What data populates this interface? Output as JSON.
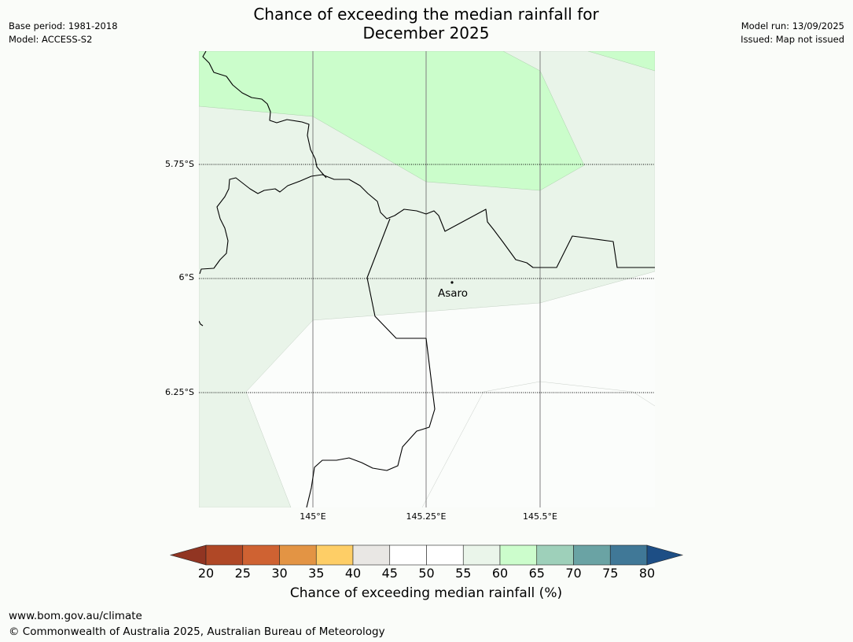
{
  "title": {
    "line1": "Chance of exceeding the median rainfall for",
    "line2": "December 2025"
  },
  "meta_left": {
    "base_period": "Base period: 1981-2018",
    "model": "Model: ACCESS-S2"
  },
  "meta_right": {
    "model_run": "Model run: 13/09/2025",
    "issued": "Issued: Map not issued"
  },
  "map": {
    "lat_labels": [
      "5.75°S",
      "6°S",
      "6.25°S"
    ],
    "lon_labels": [
      "145°E",
      "145.25°E",
      "145.5°E"
    ],
    "place": {
      "name": "Asaro"
    },
    "colors": {
      "band_60_65": "#cbfdcb",
      "band_55_60": "#e9f4e9",
      "band_50_55": "#fbfdfb",
      "border": "#000000",
      "gridline_lon": "#808080"
    }
  },
  "colorbar": {
    "label": "Chance of exceeding median rainfall (%)",
    "ticks": [
      "20",
      "25",
      "30",
      "35",
      "40",
      "45",
      "50",
      "55",
      "60",
      "65",
      "70",
      "75",
      "80"
    ],
    "under_color": "#913522",
    "over_color": "#1d4e85",
    "colors": [
      "#b04826",
      "#cf6232",
      "#e39444",
      "#fece66",
      "#e9e7e4",
      "#ffffff",
      "#ffffff",
      "#eaf5ea",
      "#ccfdcc",
      "#9ed0ba",
      "#6aa3a4",
      "#407897"
    ]
  },
  "footer": {
    "url": "www.bom.gov.au/climate",
    "copyright": "© Commonwealth of Australia 2025, Australian Bureau of Meteorology"
  }
}
